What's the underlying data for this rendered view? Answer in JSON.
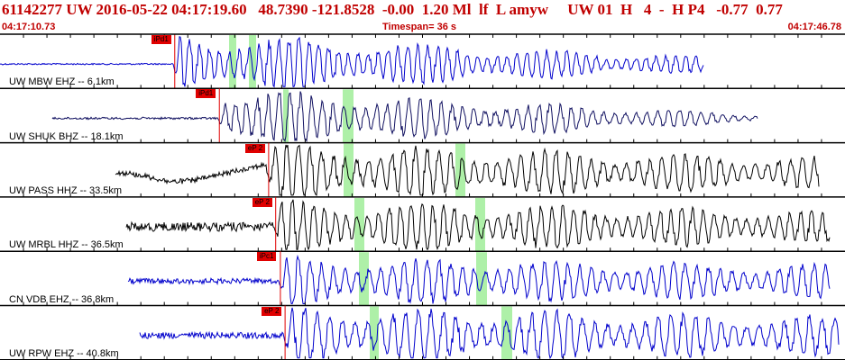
{
  "header": {
    "title": "61142277 UW 2016-05-22 04:17:19.60   48.7390 -121.8528  -0.00  1.20 Ml  lf  L amyw     UW 01  H   4  -  H P4   -0.77  0.77",
    "start_time": "04:17:10.73",
    "timespan": "Timespan=  36 s",
    "end_time": "04:17:46.78"
  },
  "colors": {
    "header_text": "#c00000",
    "pick_flag": "#e00000",
    "pick_band": "#aef0a8",
    "trace_blue": "#0000cc",
    "trace_navy": "#101060",
    "trace_black": "#000000",
    "grid": "#000000"
  },
  "traces": [
    {
      "label": "UW MBW EHZ -- 6.1km",
      "color": "blue",
      "pick": "iPd1",
      "flag_time": 6.6
    },
    {
      "label": "UW SHUK BHZ -- 18.1km",
      "color": "navy",
      "pick": "iPd1",
      "flag_time": 8.5
    },
    {
      "label": "UW PASS HHZ -- 33.5km",
      "color": "black",
      "pick": "eP 2",
      "flag_time": 10.6
    },
    {
      "label": "UW MRBL HHZ -- 36.5km",
      "color": "black",
      "pick": "eP 2",
      "flag_time": 10.9
    },
    {
      "label": "CN VDB EHZ -- 36.8km",
      "color": "blue",
      "pick": "iPc1",
      "flag_time": 11.1
    },
    {
      "label": "UW RPW EHZ -- 40.8km",
      "color": "blue",
      "pick": "eP 2",
      "flag_time": 11.3
    }
  ]
}
